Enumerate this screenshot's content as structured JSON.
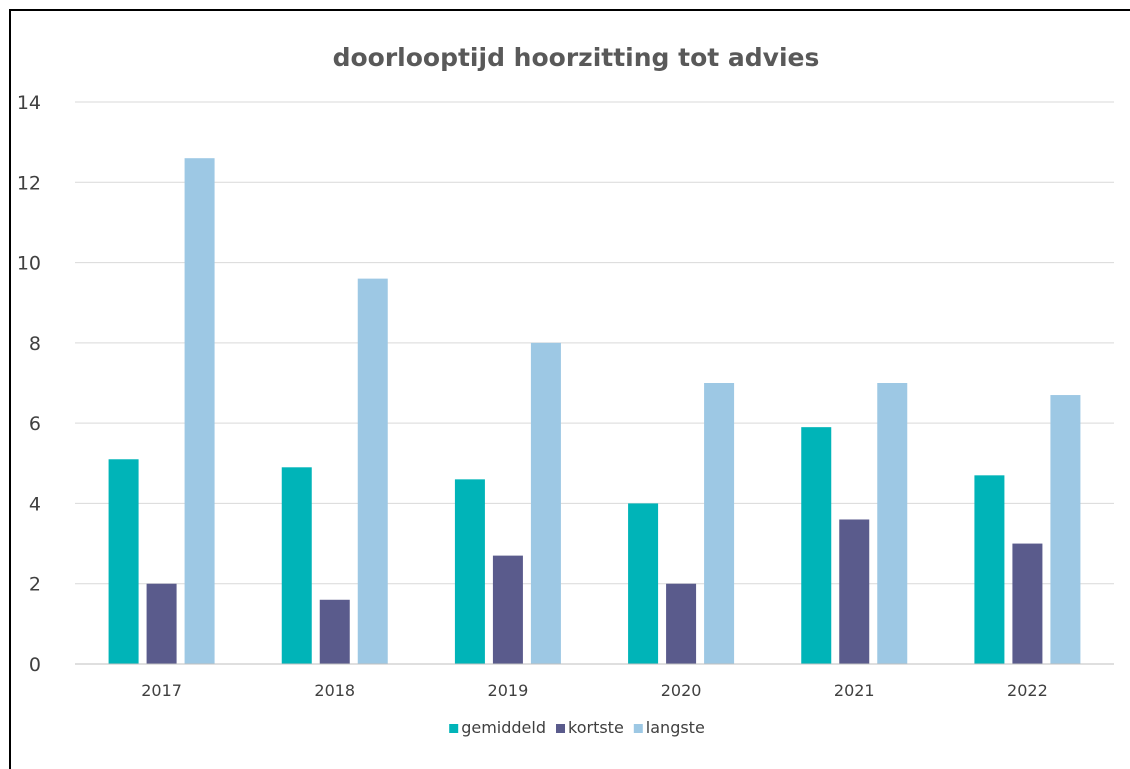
{
  "chart_data": {
    "type": "bar",
    "title": "doorlooptijd hoorzitting tot advies",
    "xlabel": "",
    "ylabel": "",
    "categories": [
      "2017",
      "2018",
      "2019",
      "2020",
      "2021",
      "2022"
    ],
    "series": [
      {
        "name": "gemiddeld",
        "color": "#00b4b8",
        "values": [
          5.1,
          4.9,
          4.6,
          4.0,
          5.9,
          4.7
        ]
      },
      {
        "name": "kortste",
        "color": "#5a5b8c",
        "values": [
          2.0,
          1.6,
          2.7,
          2.0,
          3.6,
          3.0
        ]
      },
      {
        "name": "langste",
        "color": "#9dc8e4",
        "values": [
          12.6,
          9.6,
          8.0,
          7.0,
          7.0,
          6.7
        ]
      }
    ],
    "ylim": [
      0,
      14
    ],
    "yticks": [
      "0",
      "2",
      "4",
      "6",
      "8",
      "10",
      "12",
      "14"
    ],
    "grid": true,
    "legend_position": "bottom-center",
    "gridline_color": "#d9d9d9",
    "axis_color": "#bfbfbf"
  }
}
